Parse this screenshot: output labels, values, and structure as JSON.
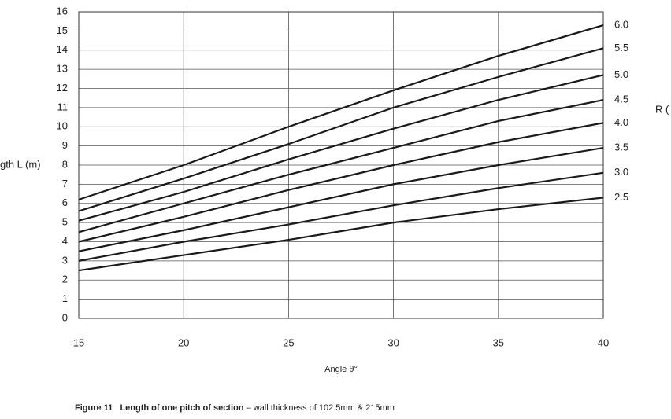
{
  "chart_data": {
    "type": "line",
    "x_label": "Angle θ°",
    "y_label": "gth L (m)",
    "y2_label": "R (",
    "caption_title": "Figure 11   Length of one pitch of section",
    "caption_text": " – wall thickness of 102.5mm & 215mm",
    "x": [
      15,
      20,
      25,
      30,
      35,
      40
    ],
    "xlim": [
      15,
      40
    ],
    "xticks": [
      15,
      20,
      25,
      30,
      35,
      40
    ],
    "ylim": [
      0,
      16
    ],
    "yticks": [
      0,
      1,
      2,
      3,
      4,
      5,
      6,
      7,
      8,
      9,
      10,
      11,
      12,
      13,
      14,
      15,
      16
    ],
    "grid": true,
    "series": [
      {
        "name": "6.0",
        "color": "#1a1a1a",
        "values": [
          6.2,
          8.0,
          10.0,
          11.9,
          13.7,
          15.3
        ]
      },
      {
        "name": "5.5",
        "color": "#1a1a1a",
        "values": [
          5.6,
          7.3,
          9.1,
          11.0,
          12.6,
          14.1
        ]
      },
      {
        "name": "5.0",
        "color": "#1a1a1a",
        "values": [
          5.1,
          6.6,
          8.3,
          9.9,
          11.4,
          12.7
        ]
      },
      {
        "name": "4.5",
        "color": "#1a1a1a",
        "values": [
          4.5,
          6.0,
          7.5,
          8.9,
          10.3,
          11.4
        ]
      },
      {
        "name": "4.0",
        "color": "#1a1a1a",
        "values": [
          4.0,
          5.3,
          6.7,
          8.0,
          9.2,
          10.2
        ]
      },
      {
        "name": "3.5",
        "color": "#1a1a1a",
        "values": [
          3.5,
          4.6,
          5.8,
          7.0,
          8.0,
          8.9
        ]
      },
      {
        "name": "3.0",
        "color": "#1a1a1a",
        "values": [
          3.0,
          4.0,
          4.9,
          5.9,
          6.8,
          7.6
        ]
      },
      {
        "name": "2.5",
        "color": "#1a1a1a",
        "values": [
          2.5,
          3.3,
          4.1,
          5.0,
          5.7,
          6.3
        ]
      }
    ]
  }
}
